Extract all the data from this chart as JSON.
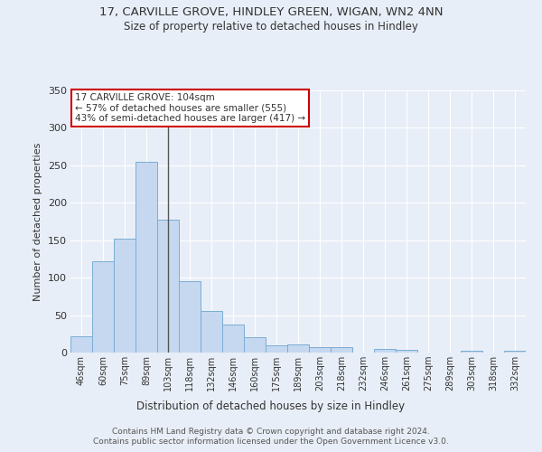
{
  "title": "17, CARVILLE GROVE, HINDLEY GREEN, WIGAN, WN2 4NN",
  "subtitle": "Size of property relative to detached houses in Hindley",
  "xlabel": "Distribution of detached houses by size in Hindley",
  "ylabel": "Number of detached properties",
  "categories": [
    "46sqm",
    "60sqm",
    "75sqm",
    "89sqm",
    "103sqm",
    "118sqm",
    "132sqm",
    "146sqm",
    "160sqm",
    "175sqm",
    "189sqm",
    "203sqm",
    "218sqm",
    "232sqm",
    "246sqm",
    "261sqm",
    "275sqm",
    "289sqm",
    "303sqm",
    "318sqm",
    "332sqm"
  ],
  "values": [
    22,
    122,
    152,
    255,
    178,
    95,
    55,
    38,
    20,
    10,
    11,
    7,
    7,
    0,
    5,
    4,
    0,
    0,
    2,
    0,
    2
  ],
  "bar_color": "#c5d8f0",
  "bar_edge_color": "#7aadd4",
  "highlight_bar_index": 4,
  "vline_color": "#555555",
  "annotation_text": "17 CARVILLE GROVE: 104sqm\n← 57% of detached houses are smaller (555)\n43% of semi-detached houses are larger (417) →",
  "annotation_box_facecolor": "#ffffff",
  "annotation_box_edgecolor": "#cc0000",
  "background_color": "#e8eef7",
  "plot_bg_color": "#e8eef7",
  "grid_color": "#ffffff",
  "ylim": [
    0,
    350
  ],
  "yticks": [
    0,
    50,
    100,
    150,
    200,
    250,
    300,
    350
  ],
  "footer_line1": "Contains HM Land Registry data © Crown copyright and database right 2024.",
  "footer_line2": "Contains public sector information licensed under the Open Government Licence v3.0."
}
